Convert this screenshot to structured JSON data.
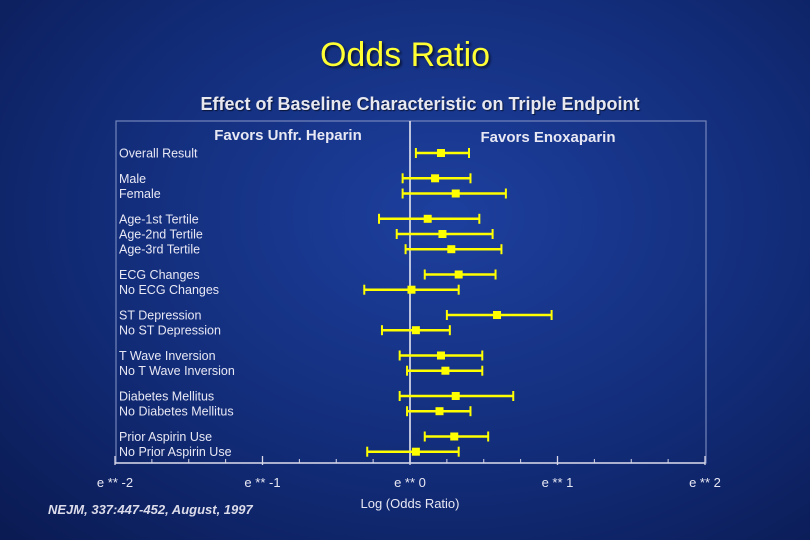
{
  "title": "Odds Ratio",
  "subtitle": "Effect of Baseline Characteristic on Triple Endpoint",
  "citation": "NEJM, 337:447-452, August, 1997",
  "chart_data": {
    "type": "forest",
    "favors_left": "Favors Unfr. Heparin",
    "favors_right": "Favors Enoxaparin",
    "xlabel": "Log (Odds Ratio)",
    "x_tick_labels": [
      "e ** -2",
      "e ** -1",
      "e ** 0",
      "e ** 1",
      "e ** 2"
    ],
    "x_tick_values": [
      -2,
      -1,
      0,
      1,
      2
    ],
    "xlim": [
      -2,
      2
    ],
    "minor_tick_step": 0.25,
    "reference_line": 0,
    "colors": {
      "marker": "#ffff00",
      "text": "#e8e8f4",
      "axis": "#d8d8e8"
    },
    "groups": [
      {
        "rows": [
          {
            "label": "Overall Result",
            "estimate": 0.21,
            "ci": [
              0.04,
              0.4
            ]
          }
        ]
      },
      {
        "rows": [
          {
            "label": "Male",
            "estimate": 0.17,
            "ci": [
              -0.05,
              0.41
            ]
          },
          {
            "label": "Female",
            "estimate": 0.31,
            "ci": [
              -0.05,
              0.65
            ]
          }
        ]
      },
      {
        "rows": [
          {
            "label": "Age-1st Tertile",
            "estimate": 0.12,
            "ci": [
              -0.21,
              0.47
            ]
          },
          {
            "label": "Age-2nd Tertile",
            "estimate": 0.22,
            "ci": [
              -0.09,
              0.56
            ]
          },
          {
            "label": "Age-3rd Tertile",
            "estimate": 0.28,
            "ci": [
              -0.03,
              0.62
            ]
          }
        ]
      },
      {
        "rows": [
          {
            "label": "ECG Changes",
            "estimate": 0.33,
            "ci": [
              0.1,
              0.58
            ]
          },
          {
            "label": "No ECG Changes",
            "estimate": 0.01,
            "ci": [
              -0.31,
              0.33
            ]
          }
        ]
      },
      {
        "rows": [
          {
            "label": "ST Depression",
            "estimate": 0.59,
            "ci": [
              0.25,
              0.96
            ]
          },
          {
            "label": "No ST Depression",
            "estimate": 0.04,
            "ci": [
              -0.19,
              0.27
            ]
          }
        ]
      },
      {
        "rows": [
          {
            "label": "T Wave Inversion",
            "estimate": 0.21,
            "ci": [
              -0.07,
              0.49
            ]
          },
          {
            "label": "No T Wave Inversion",
            "estimate": 0.24,
            "ci": [
              -0.02,
              0.49
            ]
          }
        ]
      },
      {
        "rows": [
          {
            "label": "Diabetes Mellitus",
            "estimate": 0.31,
            "ci": [
              -0.07,
              0.7
            ]
          },
          {
            "label": "No Diabetes Mellitus",
            "estimate": 0.2,
            "ci": [
              -0.02,
              0.41
            ]
          }
        ]
      },
      {
        "rows": [
          {
            "label": "Prior Aspirin Use",
            "estimate": 0.3,
            "ci": [
              0.1,
              0.53
            ]
          },
          {
            "label": "No Prior Aspirin Use",
            "estimate": 0.04,
            "ci": [
              -0.29,
              0.33
            ]
          }
        ]
      }
    ]
  }
}
